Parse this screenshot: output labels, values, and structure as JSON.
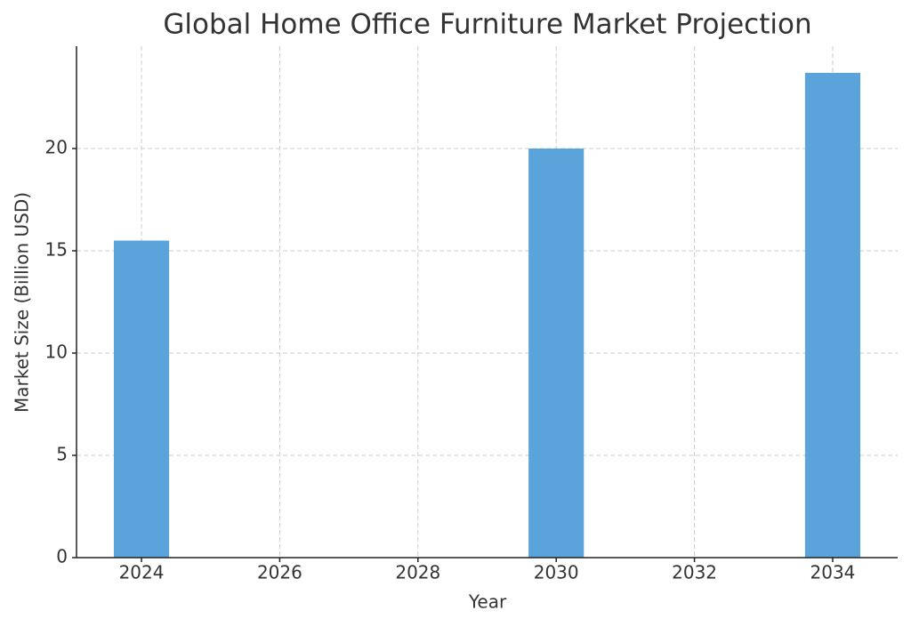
{
  "chart_data": {
    "type": "bar",
    "title": "Global Home Office Furniture Market Projection",
    "x_label": "Year",
    "y_label": "Market Size (Billion USD)",
    "x": [
      2024,
      2030,
      2034
    ],
    "values": [
      15.5,
      20,
      23.7
    ],
    "color": "#5ba3db",
    "xlim": [
      2023.06,
      2034.94
    ],
    "xticks": [
      2024,
      2026,
      2028,
      2030,
      2032,
      2034
    ],
    "ylim": [
      0,
      25
    ],
    "yticks": [
      0,
      5,
      10,
      15,
      20
    ],
    "grid": true
  }
}
